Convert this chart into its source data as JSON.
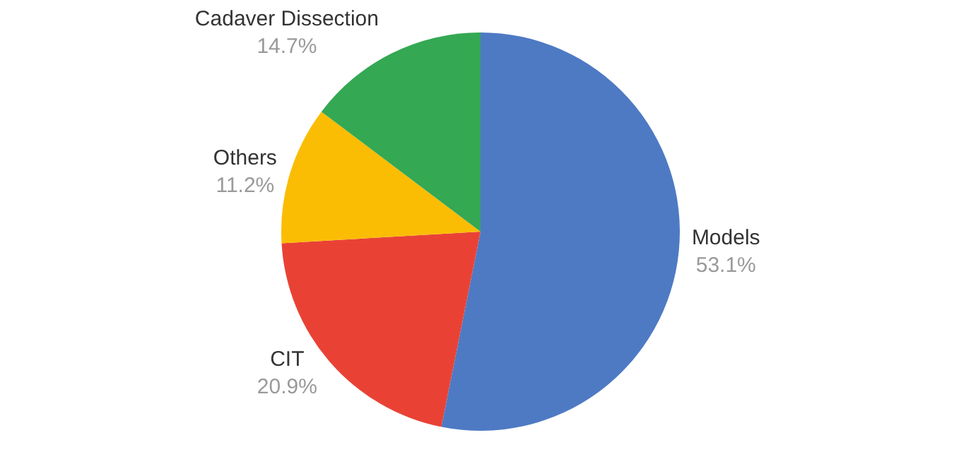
{
  "chart_data": {
    "type": "pie",
    "categories": [
      "Models",
      "CIT",
      "Others",
      "Cadaver Dissection"
    ],
    "values": [
      53.1,
      20.9,
      11.2,
      14.7
    ],
    "value_labels": [
      "53.1%",
      "20.9%",
      "11.2%",
      "14.7%"
    ],
    "colors": [
      "#4e7ac4",
      "#e94235",
      "#fbbc04",
      "#34a853"
    ],
    "legend": false
  }
}
